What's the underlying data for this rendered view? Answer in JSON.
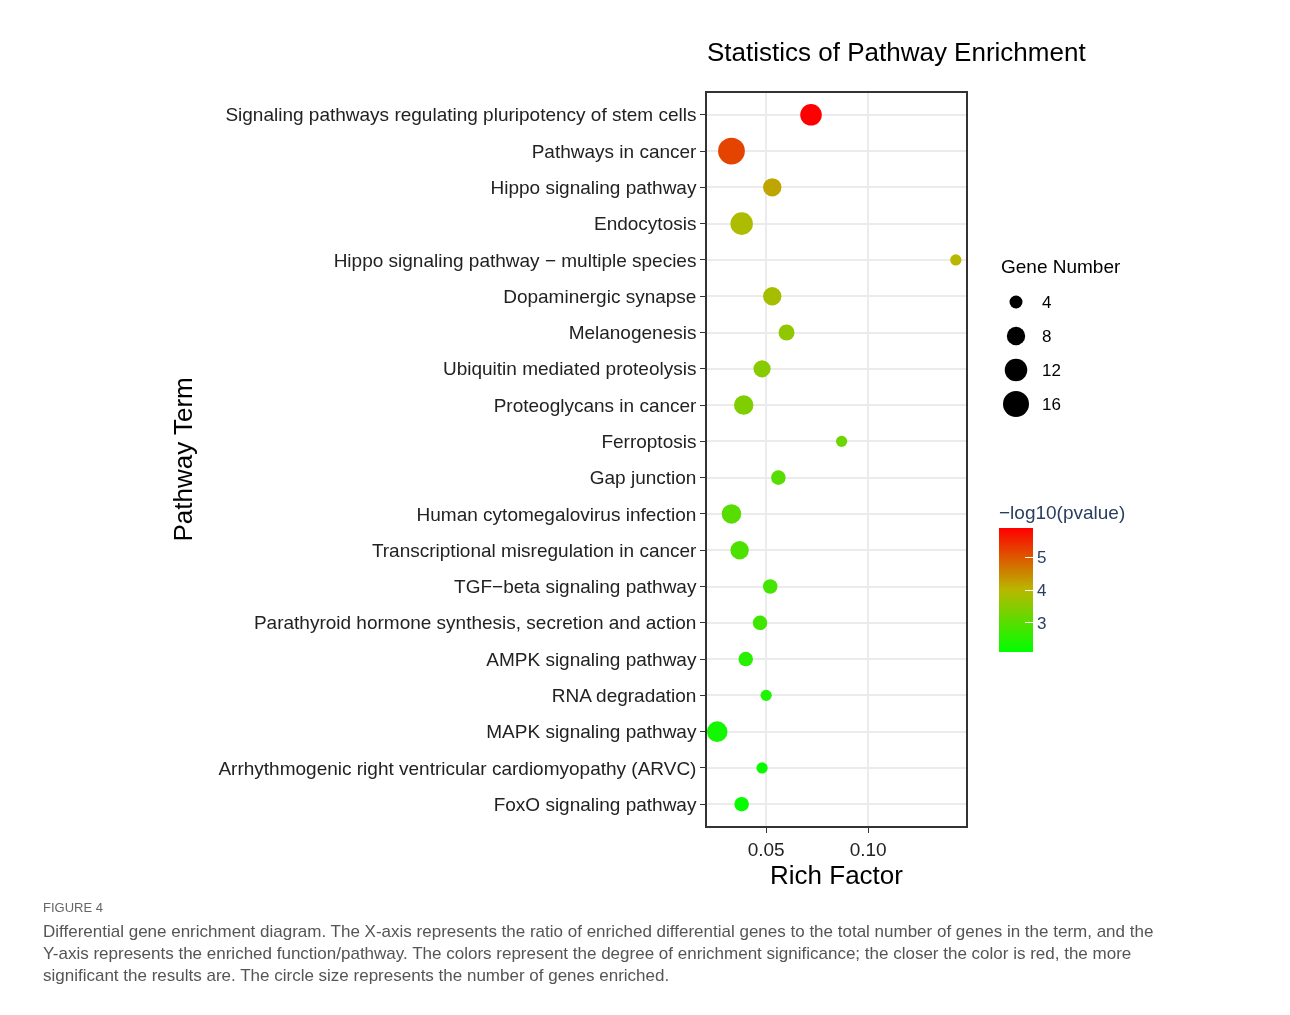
{
  "chart_data": {
    "type": "bubble",
    "title": "Statistics of Pathway Enrichment",
    "xlabel": "Rich Factor",
    "ylabel": "Pathway Term",
    "legend_title": "Gene Number",
    "clabel": "−log10(pvalue)",
    "categories": [
      "Signaling pathways regulating pluripotency of stem cells",
      "Pathways in cancer",
      "Hippo signaling pathway",
      "Endocytosis",
      "Hippo signaling pathway − multiple species",
      "Dopaminergic synapse",
      "Melanogenesis",
      "Ubiquitin mediated proteolysis",
      "Proteoglycans in cancer",
      "Ferroptosis",
      "Gap junction",
      "Human cytomegalovirus infection",
      "Transcriptional misregulation in cancer",
      "TGF−beta signaling pathway",
      "Parathyroid hormone synthesis, secretion and action",
      "AMPK signaling pathway",
      "RNA degradation",
      "MAPK signaling pathway",
      "Arrhythmogenic right ventricular cardiomyopathy (ARVC)",
      "FoxO signaling pathway"
    ],
    "orientation": "horizontal",
    "values": [
      0.072,
      0.033,
      0.053,
      0.038,
      0.143,
      0.053,
      0.06,
      0.048,
      0.039,
      0.087,
      0.056,
      0.033,
      0.037,
      0.052,
      0.047,
      0.04,
      0.05,
      0.026,
      0.048,
      0.038
    ],
    "sizes": [
      11,
      17,
      8,
      12,
      3,
      8,
      6,
      7,
      9,
      3,
      5,
      9,
      8,
      5,
      5,
      5,
      3,
      10,
      3,
      5
    ],
    "size_legend": [
      4,
      8,
      12,
      16
    ],
    "cvalues": [
      5.9,
      5.2,
      4.2,
      3.9,
      4.0,
      3.8,
      3.6,
      3.5,
      3.4,
      3.2,
      3.0,
      3.0,
      2.9,
      2.8,
      2.75,
      2.5,
      2.4,
      2.3,
      2.2,
      2.15
    ],
    "clim": [
      2.1,
      5.9
    ],
    "cticks": [
      3,
      4,
      5
    ],
    "xlim": [
      0.021,
      0.148
    ],
    "xticks": [
      {
        "value": 0.05,
        "label": "0.05"
      },
      {
        "value": 0.1,
        "label": "0.10"
      }
    ],
    "grid": true,
    "annotations": [
      "FIGURE 4",
      "Differential gene enrichment diagram. The X-axis represents the ratio of enriched differential genes to the total number of genes in the term, and the Y-axis represents the enriched function/pathway. The colors represent the degree of enrichment significance; the closer the color is red, the more significant the results are. The circle size represents the number of genes enriched."
    ]
  }
}
